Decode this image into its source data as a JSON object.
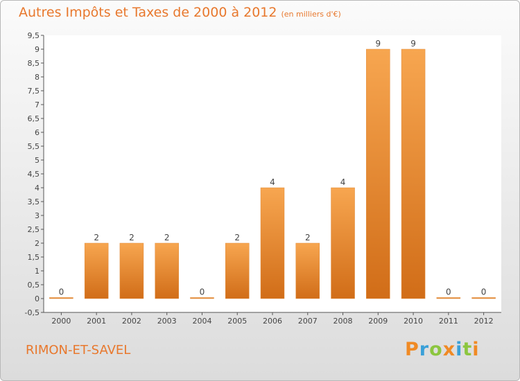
{
  "header": {
    "title": "Autres Impôts et Taxes de 2000 à 2012",
    "unit": "(en milliers d'€)"
  },
  "footer": {
    "commune": "RIMON-ET-SAVEL",
    "logo": "Proxiti"
  },
  "colors": {
    "bar_light": "#f7a650",
    "bar_dark": "#d16d18",
    "title": "#e8782d",
    "logo_letters": [
      "#f08a24",
      "#3aa0d8",
      "#8cc63f",
      "#f08a24",
      "#3aa0d8",
      "#8cc63f"
    ]
  },
  "chart_data": {
    "type": "bar",
    "title": "Autres Impôts et Taxes de 2000 à 2012",
    "subtitle": "(en milliers d'€)",
    "categories": [
      "2000",
      "2001",
      "2002",
      "2003",
      "2004",
      "2005",
      "2006",
      "2007",
      "2008",
      "2009",
      "2010",
      "2011",
      "2012"
    ],
    "values": [
      0,
      2,
      2,
      2,
      0,
      2,
      4,
      2,
      4,
      9,
      9,
      0,
      0
    ],
    "data_labels": [
      "0",
      "2",
      "2",
      "2",
      "0",
      "2",
      "4",
      "2",
      "4",
      "9",
      "9",
      "0",
      "0"
    ],
    "yticks": [
      "-0,5",
      "0",
      "0,5",
      "1",
      "1,5",
      "2",
      "2,5",
      "3",
      "3,5",
      "4",
      "4,5",
      "5",
      "5,5",
      "6",
      "6,5",
      "7",
      "7,5",
      "8",
      "8,5",
      "9",
      "9,5"
    ],
    "ylim": [
      -0.5,
      9.5
    ],
    "grid": false,
    "legend": "none"
  }
}
